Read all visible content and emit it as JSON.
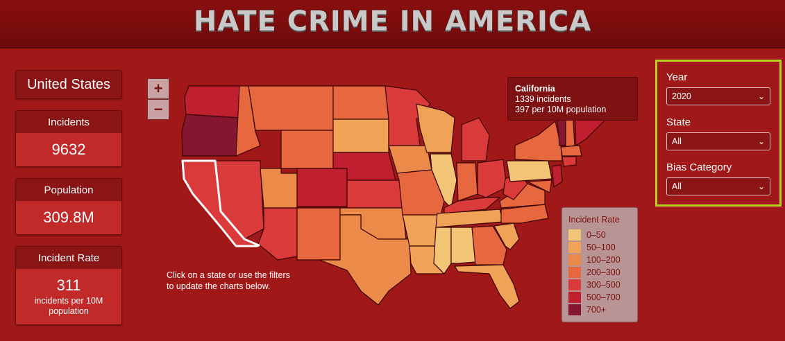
{
  "header": {
    "title": "HATE CRIME IN AMERICA"
  },
  "summary": {
    "region": "United States",
    "incidents_label": "Incidents",
    "incidents_value": "9632",
    "population_label": "Population",
    "population_value": "309.8M",
    "rate_label": "Incident Rate",
    "rate_value": "311",
    "rate_unit": "incidents per 10M population"
  },
  "map": {
    "zoom_in": "+",
    "zoom_out": "−",
    "tooltip": {
      "state": "California",
      "incidents": "1339 incidents",
      "rate": "397 per 10M population"
    },
    "hint": "Click on a state or use the filters to update the charts below.",
    "selected_state": "California"
  },
  "legend": {
    "title": "Incident Rate",
    "items": [
      {
        "label": "0–50",
        "color": "#f1c476"
      },
      {
        "label": "50–100",
        "color": "#f0a256"
      },
      {
        "label": "100–200",
        "color": "#ec8a4a"
      },
      {
        "label": "200–300",
        "color": "#e7683f"
      },
      {
        "label": "300–500",
        "color": "#db3a3a"
      },
      {
        "label": "500–700",
        "color": "#c01f2f"
      },
      {
        "label": "700+",
        "color": "#84172f"
      }
    ]
  },
  "filters": {
    "year_label": "Year",
    "year_value": "2020",
    "state_label": "State",
    "state_value": "All",
    "bias_label": "Bias Category",
    "bias_value": "All"
  },
  "colors": {
    "accent": "#b8d020",
    "background": "#a01818"
  }
}
